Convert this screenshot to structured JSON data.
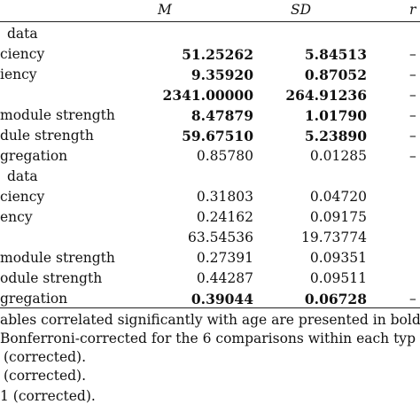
{
  "header": {
    "m": "M",
    "sd": "SD",
    "r": "r"
  },
  "rows": [
    {
      "label": "data",
      "m": "",
      "sd": "",
      "r": "",
      "bold": false,
      "section": true
    },
    {
      "label": "ciency",
      "m": "51.25262",
      "sd": "5.84513",
      "r": "–",
      "bold": true
    },
    {
      "label": "iency",
      "m": "9.35920",
      "sd": "0.87052",
      "r": "–",
      "bold": true
    },
    {
      "label": "",
      "m": "2341.00000",
      "sd": "264.91236",
      "r": "–",
      "bold": true
    },
    {
      "label": "module strength",
      "m": "8.47879",
      "sd": "1.01790",
      "r": "–",
      "bold": true
    },
    {
      "label": "dule strength",
      "m": "59.67510",
      "sd": "5.23890",
      "r": "–",
      "bold": true
    },
    {
      "label": "gregation",
      "m": "0.85780",
      "sd": "0.01285",
      "r": "–",
      "bold": false
    },
    {
      "label": "data",
      "m": "",
      "sd": "",
      "r": "",
      "bold": false,
      "section": true
    },
    {
      "label": "ciency",
      "m": "0.31803",
      "sd": "0.04720",
      "r": "",
      "bold": false
    },
    {
      "label": "ency",
      "m": "0.24162",
      "sd": "0.09175",
      "r": "",
      "bold": false
    },
    {
      "label": "",
      "m": "63.54536",
      "sd": "19.73774",
      "r": "",
      "bold": false
    },
    {
      "label": "module strength",
      "m": "0.27391",
      "sd": "0.09351",
      "r": "",
      "bold": false
    },
    {
      "label": "odule strength",
      "m": "0.44287",
      "sd": "0.09511",
      "r": "",
      "bold": false
    },
    {
      "label": "gregation",
      "m": "0.39044",
      "sd": "0.06728",
      "r": "–",
      "bold": true
    }
  ],
  "notes": [
    "ables correlated significantly with age are presented in bold.",
    "Bonferroni-corrected for the 6 comparisons within each typ",
    "(corrected).",
    "(corrected).",
    "1 (corrected)."
  ]
}
